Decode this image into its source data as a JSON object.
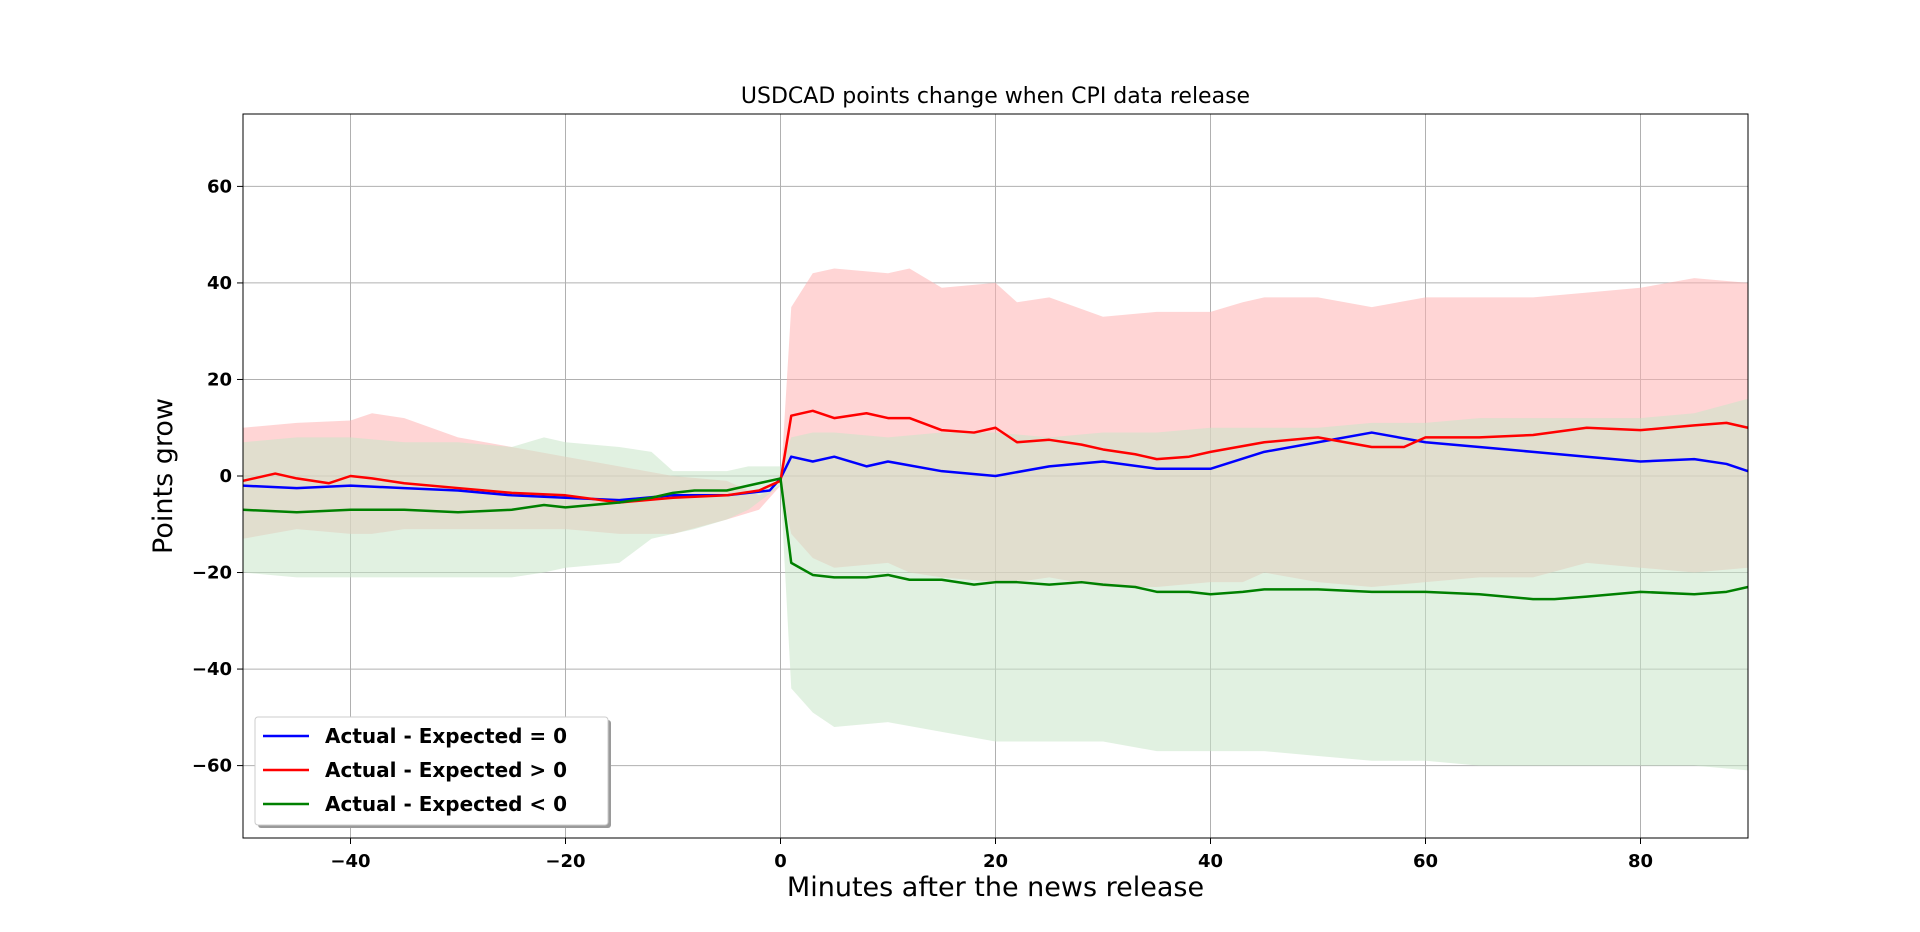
{
  "chart_data": {
    "type": "line",
    "title": "USDCAD points change when CPI data release",
    "xlabel": "Minutes after the news release",
    "ylabel": "Points grow",
    "xlim": [
      -50,
      90
    ],
    "ylim": [
      -75,
      75
    ],
    "xticks": [
      -40,
      -20,
      0,
      20,
      40,
      60,
      80
    ],
    "yticks": [
      -60,
      -40,
      -20,
      0,
      20,
      40,
      60
    ],
    "xtick_labels": [
      "−40",
      "−20",
      "0",
      "20",
      "40",
      "60",
      "80"
    ],
    "ytick_labels": [
      "−60",
      "−40",
      "−20",
      "0",
      "20",
      "40",
      "60"
    ],
    "grid": true,
    "legend_position": "lower-left",
    "series": [
      {
        "name": "Actual - Expected = 0",
        "color": "#0000ff",
        "x": [
          -50,
          -45,
          -40,
          -35,
          -30,
          -25,
          -20,
          -15,
          -10,
          -5,
          -1,
          0,
          1,
          3,
          5,
          8,
          10,
          15,
          20,
          25,
          30,
          35,
          40,
          45,
          50,
          55,
          60,
          65,
          70,
          75,
          80,
          85,
          88,
          90
        ],
        "y": [
          -2,
          -2.5,
          -2,
          -2.5,
          -3,
          -4,
          -4.5,
          -5,
          -4,
          -4,
          -3,
          -0.5,
          4,
          3,
          4,
          2,
          3,
          1,
          0,
          2,
          3,
          1.5,
          1.5,
          5,
          7,
          9,
          7,
          6,
          5,
          4,
          3,
          3.5,
          2.5,
          1
        ],
        "band": null
      },
      {
        "name": "Actual - Expected > 0",
        "color": "#ff0000",
        "x": [
          -50,
          -47,
          -45,
          -42,
          -40,
          -38,
          -35,
          -30,
          -25,
          -20,
          -15,
          -10,
          -5,
          -2,
          0,
          1,
          3,
          5,
          8,
          10,
          12,
          15,
          18,
          20,
          22,
          25,
          28,
          30,
          33,
          35,
          38,
          40,
          45,
          50,
          55,
          58,
          60,
          65,
          70,
          75,
          80,
          85,
          88,
          90
        ],
        "y": [
          -1,
          0.5,
          -0.5,
          -1.5,
          0,
          -0.5,
          -1.5,
          -2.5,
          -3.5,
          -4,
          -5.5,
          -4.5,
          -4,
          -3,
          -1,
          12.5,
          13.5,
          12,
          13,
          12,
          12,
          9.5,
          9,
          10,
          7,
          7.5,
          6.5,
          5.5,
          4.5,
          3.5,
          4,
          5,
          7,
          8,
          6,
          6,
          8,
          8,
          8.5,
          10,
          9.5,
          10.5,
          11,
          10
        ],
        "band": {
          "color": "#ffb3b3",
          "x": [
            -50,
            -45,
            -40,
            -38,
            -35,
            -30,
            -25,
            -20,
            -15,
            -10,
            -5,
            -2,
            0,
            1,
            3,
            5,
            10,
            12,
            15,
            20,
            22,
            25,
            30,
            35,
            40,
            43,
            45,
            50,
            55,
            60,
            65,
            70,
            75,
            80,
            85,
            90
          ],
          "upper": [
            10,
            11,
            11.5,
            13,
            12,
            8,
            6,
            4,
            2,
            0,
            -1,
            -4,
            -2,
            35,
            42,
            43,
            42,
            43,
            39,
            40,
            36,
            37,
            33,
            34,
            34,
            36,
            37,
            37,
            35,
            37,
            37,
            37,
            38,
            39,
            41,
            40
          ],
          "lower": [
            -13,
            -11,
            -12,
            -12,
            -11,
            -11,
            -11,
            -11,
            -12,
            -12,
            -9,
            -7,
            -2,
            -12,
            -17,
            -19,
            -18,
            -20,
            -21,
            -22,
            -22,
            -21,
            -23,
            -23,
            -22,
            -22,
            -20,
            -22,
            -23,
            -22,
            -21,
            -21,
            -18,
            -19,
            -20,
            -19
          ]
        }
      },
      {
        "name": "Actual - Expected < 0",
        "color": "#008000",
        "x": [
          -50,
          -45,
          -40,
          -35,
          -30,
          -25,
          -22,
          -20,
          -15,
          -12,
          -10,
          -8,
          -5,
          -3,
          0,
          1,
          3,
          5,
          8,
          10,
          12,
          15,
          18,
          20,
          22,
          25,
          28,
          30,
          33,
          35,
          38,
          40,
          43,
          45,
          50,
          55,
          60,
          65,
          70,
          72,
          75,
          80,
          85,
          88,
          90
        ],
        "y": [
          -7,
          -7.5,
          -7,
          -7,
          -7.5,
          -7,
          -6,
          -6.5,
          -5.5,
          -4.5,
          -3.5,
          -3,
          -3,
          -2,
          -0.5,
          -18,
          -20.5,
          -21,
          -21,
          -20.5,
          -21.5,
          -21.5,
          -22.5,
          -22,
          -22,
          -22.5,
          -22,
          -22.5,
          -23,
          -24,
          -24,
          -24.5,
          -24,
          -23.5,
          -23.5,
          -24,
          -24,
          -24.5,
          -25.5,
          -25.5,
          -25,
          -24,
          -24.5,
          -24,
          -23
        ],
        "band": {
          "color": "#c8e6c9",
          "x": [
            -50,
            -45,
            -40,
            -35,
            -30,
            -25,
            -22,
            -20,
            -15,
            -12,
            -10,
            -8,
            -5,
            -3,
            0,
            1,
            3,
            5,
            10,
            15,
            20,
            25,
            30,
            35,
            40,
            45,
            50,
            55,
            60,
            65,
            70,
            75,
            80,
            85,
            90
          ],
          "upper": [
            7,
            8,
            8,
            7,
            7,
            6,
            8,
            7,
            6,
            5,
            1,
            1,
            1,
            2,
            2,
            8,
            9,
            9,
            8,
            9,
            9,
            8,
            9,
            9,
            10,
            10,
            10,
            11,
            11,
            12,
            12,
            12,
            12,
            13,
            16
          ],
          "lower": [
            -20,
            -21,
            -21,
            -21,
            -21,
            -21,
            -20,
            -19,
            -18,
            -13,
            -12,
            -11,
            -9,
            -7,
            -2,
            -44,
            -49,
            -52,
            -51,
            -53,
            -55,
            -55,
            -55,
            -57,
            -57,
            -57,
            -58,
            -59,
            -59,
            -60,
            -60,
            -60,
            -60,
            -60,
            -61
          ]
        }
      }
    ]
  }
}
